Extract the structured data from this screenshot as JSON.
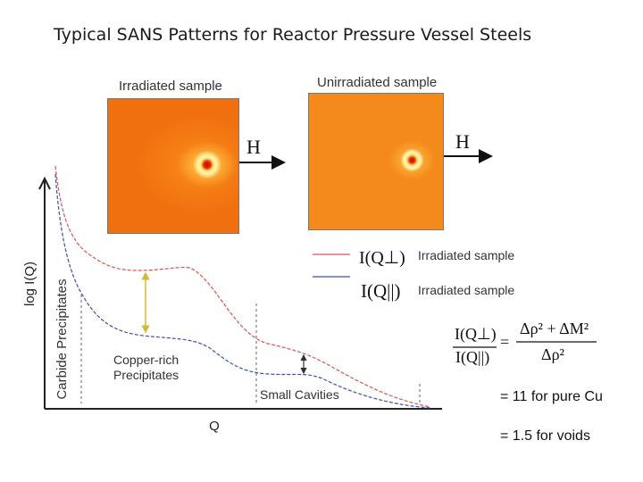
{
  "title": "Typical SANS Patterns for Reactor Pressure Vessel Steels",
  "panels": {
    "irradiated_label": "Irradiated sample",
    "unirradiated_label": "Unirradiated sample",
    "field_symbol": "H"
  },
  "plot": {
    "ylabel": "log I(Q)",
    "xlabel": "Q",
    "annotations": {
      "carbide": "Carbide Precipitates",
      "copper_line1": "Copper-rich",
      "copper_line2": "Precipitates",
      "cavities": "Small Cavities"
    },
    "colors": {
      "perp": "#d9534f",
      "par": "#3b4fb8",
      "marker": "#e8c84a"
    }
  },
  "legend": {
    "perp_formula": "I(Q⊥)",
    "perp_text": "Irradiated sample",
    "par_formula": "I(Q||)",
    "par_text": "Irradiated sample"
  },
  "ratio": {
    "lhs_num": "I(Q⊥)",
    "lhs_den": "I(Q||)",
    "rhs_num": "Δρ² + ΔM²",
    "rhs_den": "Δρ²",
    "eq": "=",
    "cu_note": "= 11 for pure Cu",
    "void_note": "= 1.5 for voids"
  }
}
